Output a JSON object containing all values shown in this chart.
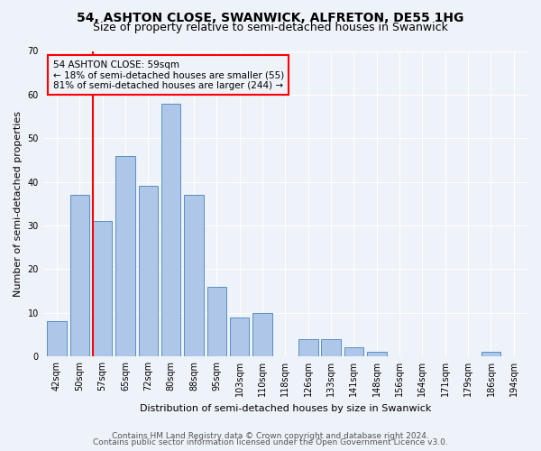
{
  "title": "54, ASHTON CLOSE, SWANWICK, ALFRETON, DE55 1HG",
  "subtitle": "Size of property relative to semi-detached houses in Swanwick",
  "xlabel": "Distribution of semi-detached houses by size in Swanwick",
  "ylabel": "Number of semi-detached properties",
  "categories": [
    "42sqm",
    "50sqm",
    "57sqm",
    "65sqm",
    "72sqm",
    "80sqm",
    "88sqm",
    "95sqm",
    "103sqm",
    "110sqm",
    "118sqm",
    "126sqm",
    "133sqm",
    "141sqm",
    "148sqm",
    "156sqm",
    "164sqm",
    "171sqm",
    "179sqm",
    "186sqm",
    "194sqm"
  ],
  "values": [
    8,
    37,
    31,
    46,
    39,
    58,
    37,
    16,
    9,
    10,
    0,
    4,
    4,
    2,
    1,
    0,
    0,
    0,
    0,
    1,
    0
  ],
  "bar_color": "#aec6e8",
  "bar_edge_color": "#5a8fc2",
  "property_bin_index": 2,
  "red_line_label": "54 ASHTON CLOSE: 59sqm",
  "annotation_smaller": "← 18% of semi-detached houses are smaller (55)",
  "annotation_larger": "81% of semi-detached houses are larger (244) →",
  "ylim": [
    0,
    70
  ],
  "yticks": [
    0,
    10,
    20,
    30,
    40,
    50,
    60,
    70
  ],
  "footer1": "Contains HM Land Registry data © Crown copyright and database right 2024.",
  "footer2": "Contains public sector information licensed under the Open Government Licence v3.0.",
  "background_color": "#eef2f9",
  "grid_color": "#ffffff",
  "title_fontsize": 10,
  "subtitle_fontsize": 9,
  "axis_label_fontsize": 8,
  "tick_fontsize": 7,
  "annotation_fontsize": 7.5,
  "footer_fontsize": 6.5
}
